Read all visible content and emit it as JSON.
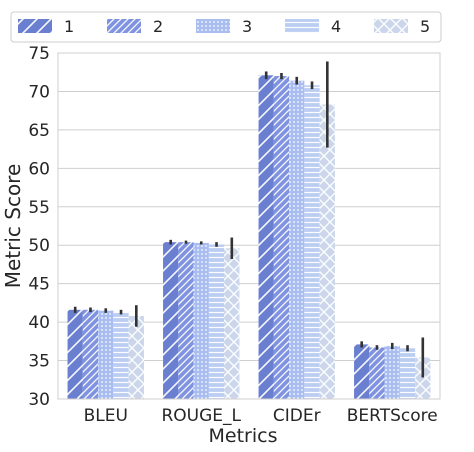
{
  "chart_data": {
    "type": "bar",
    "title": "",
    "xlabel": "Metrics",
    "ylabel": "Metric Score",
    "ylim": [
      30,
      75
    ],
    "yticks": [
      30,
      35,
      40,
      45,
      50,
      55,
      60,
      65,
      70,
      75
    ],
    "grid": true,
    "legend_position": "top",
    "categories": [
      "BLEU",
      "ROUGE_L",
      "CIDEr",
      "BERTScore"
    ],
    "series": [
      {
        "name": "1",
        "color": "#6b7fd0",
        "pattern": "slash",
        "values": [
          41.6,
          50.4,
          72.1,
          37.1
        ],
        "err": [
          0.4,
          0.3,
          0.5,
          0.4
        ]
      },
      {
        "name": "2",
        "color": "#7f93e0",
        "pattern": "dense-slash",
        "values": [
          41.6,
          50.4,
          72.0,
          36.7
        ],
        "err": [
          0.3,
          0.2,
          0.4,
          0.3
        ]
      },
      {
        "name": "3",
        "color": "#a9bdf0",
        "pattern": "dots",
        "values": [
          41.5,
          50.3,
          71.4,
          36.9
        ],
        "err": [
          0.3,
          0.2,
          0.5,
          0.4
        ]
      },
      {
        "name": "4",
        "color": "#bccdf2",
        "pattern": "horizontal",
        "values": [
          41.3,
          50.1,
          70.8,
          36.6
        ],
        "err": [
          0.3,
          0.3,
          0.5,
          0.4
        ]
      },
      {
        "name": "5",
        "color": "#ccd6ea",
        "pattern": "cross",
        "values": [
          40.8,
          49.6,
          68.3,
          35.4
        ],
        "err": [
          1.4,
          1.4,
          5.6,
          2.6
        ]
      }
    ]
  }
}
